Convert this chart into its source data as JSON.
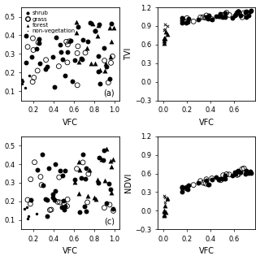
{
  "legend_labels": [
    "shrub",
    "grass",
    "forest",
    "non-vegetation"
  ],
  "panel_labels": [
    "(a)",
    "(c)"
  ],
  "panel_ylabels_right": [
    "TVI",
    "NDVI"
  ],
  "panel_xlabel": "VFC",
  "left_xlim": [
    0.08,
    1.05
  ],
  "left_xticks": [
    0.2,
    0.4,
    0.6,
    0.8,
    1.0
  ],
  "left_ylim": [
    0.05,
    0.55
  ],
  "left_yticks": [
    0.1,
    0.2,
    0.3,
    0.4,
    0.5
  ],
  "right_xlim": [
    -0.05,
    0.78
  ],
  "right_xticks": [
    0.0,
    0.2,
    0.4,
    0.6
  ],
  "tvi_ylim": [
    -0.3,
    1.2
  ],
  "tvi_yticks": [
    -0.3,
    0.0,
    0.3,
    0.6,
    0.9,
    1.2
  ],
  "ndvi_ylim": [
    -0.3,
    1.2
  ],
  "ndvi_yticks": [
    -0.3,
    0.0,
    0.3,
    0.6,
    0.9,
    1.2
  ]
}
